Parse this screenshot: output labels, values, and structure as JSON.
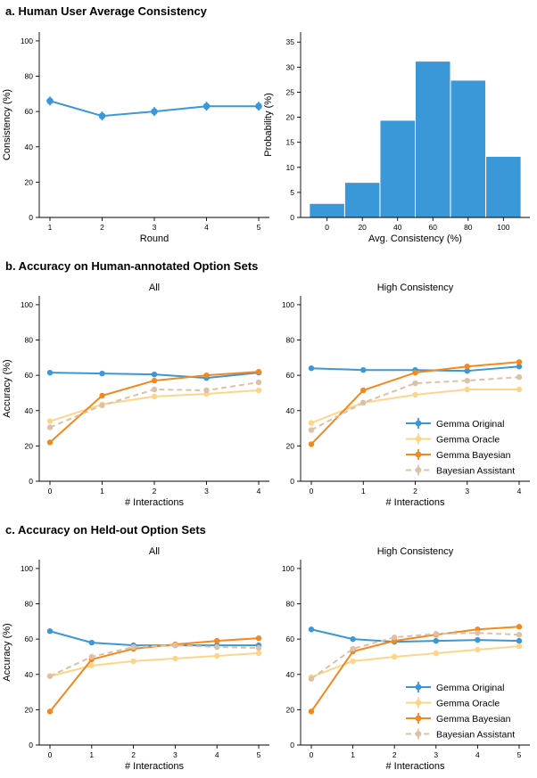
{
  "sections": {
    "a": "a. Human User Average Consistency",
    "b": "b. Accuracy on Human-annotated Option Sets",
    "c": "c. Accuracy on Held-out Option Sets"
  },
  "colors": {
    "gemma_original": "#3a97d8",
    "gemma_oracle": "#fdd58a",
    "gemma_bayesian": "#f5871f",
    "bayesian_assistant": "#dcc1a7",
    "histogram": "#3a97d8"
  },
  "legend": {
    "placement": "lower-right",
    "entries": [
      {
        "name": "Gemma Original",
        "color": "#3a97d8",
        "dashed": false
      },
      {
        "name": "Gemma Oracle",
        "color": "#fdd58a",
        "dashed": false
      },
      {
        "name": "Gemma Bayesian",
        "color": "#f5871f",
        "dashed": false
      },
      {
        "name": "Bayesian Assistant",
        "color": "#dcc1a7",
        "dashed": true
      }
    ]
  },
  "chart_data": [
    {
      "type": "line",
      "title": "",
      "xlabel": "Round",
      "ylabel": "Consistency (%)",
      "x": [
        1,
        2,
        3,
        4,
        5
      ],
      "xticks": [
        1,
        2,
        3,
        4,
        5
      ],
      "ylim": [
        0,
        105
      ],
      "yticks": [
        0,
        20,
        40,
        60,
        80,
        100
      ],
      "series": [
        {
          "color": "#3a97d8",
          "values": [
            66,
            57.5,
            60,
            63,
            63
          ],
          "error": [
            2.5,
            2.5,
            2.5,
            2.5,
            2.5
          ]
        }
      ]
    },
    {
      "type": "bar",
      "title": "",
      "xlabel": "Avg. Consistency (%)",
      "ylabel": "Probability (%)",
      "xlim": [
        -15,
        115
      ],
      "xticks": [
        0,
        20,
        40,
        60,
        80,
        100
      ],
      "ylim": [
        0,
        37
      ],
      "yticks": [
        0,
        5,
        10,
        15,
        20,
        25,
        30,
        35
      ],
      "bins": [
        [
          -10,
          10
        ],
        [
          10,
          30
        ],
        [
          30,
          50
        ],
        [
          50,
          70
        ],
        [
          70,
          90
        ],
        [
          90,
          110
        ]
      ],
      "values": [
        2.8,
        7,
        19.4,
        31.2,
        27.4,
        12.2
      ]
    },
    {
      "type": "line",
      "title": "All",
      "xlabel": "# Interactions",
      "ylabel": "Accuracy (%)",
      "x": [
        0,
        1,
        2,
        3,
        4
      ],
      "xticks": [
        0,
        1,
        2,
        3,
        4
      ],
      "ylim": [
        0,
        105
      ],
      "yticks": [
        0,
        20,
        40,
        60,
        80,
        100
      ],
      "series": [
        {
          "key": "gemma_original",
          "values": [
            61.5,
            61,
            60.5,
            58.5,
            61.5
          ]
        },
        {
          "key": "gemma_oracle",
          "values": [
            34,
            43.5,
            48,
            49.5,
            51.5
          ]
        },
        {
          "key": "gemma_bayesian",
          "values": [
            22,
            48.5,
            57,
            60,
            62
          ]
        },
        {
          "key": "bayesian_assistant",
          "values": [
            30.5,
            43,
            52,
            51.5,
            56
          ]
        }
      ]
    },
    {
      "type": "line",
      "title": "High Consistency",
      "xlabel": "# Interactions",
      "ylabel": "",
      "x": [
        0,
        1,
        2,
        3,
        4
      ],
      "xticks": [
        0,
        1,
        2,
        3,
        4
      ],
      "ylim": [
        0,
        105
      ],
      "yticks": [
        0,
        20,
        40,
        60,
        80,
        100
      ],
      "series": [
        {
          "key": "gemma_original",
          "values": [
            64,
            63,
            63,
            62.5,
            65
          ]
        },
        {
          "key": "gemma_oracle",
          "values": [
            33,
            44.5,
            49,
            52,
            52
          ]
        },
        {
          "key": "gemma_bayesian",
          "values": [
            21,
            51.5,
            61.5,
            65,
            67.5
          ]
        },
        {
          "key": "bayesian_assistant",
          "values": [
            29,
            44.5,
            55.5,
            57,
            59
          ]
        }
      ]
    },
    {
      "type": "line",
      "title": "All",
      "xlabel": "# Interactions",
      "ylabel": "Accuracy (%)",
      "x": [
        0,
        1,
        2,
        3,
        4,
        5
      ],
      "xticks": [
        0,
        1,
        2,
        3,
        4,
        5
      ],
      "ylim": [
        0,
        105
      ],
      "yticks": [
        0,
        20,
        40,
        60,
        80,
        100
      ],
      "series": [
        {
          "key": "gemma_original",
          "values": [
            64.5,
            58,
            56.5,
            56.5,
            56.5,
            56.5
          ]
        },
        {
          "key": "gemma_oracle",
          "values": [
            39,
            45,
            47.5,
            49,
            50.5,
            52
          ]
        },
        {
          "key": "gemma_bayesian",
          "values": [
            19,
            48.5,
            54.5,
            57,
            59,
            60.5
          ]
        },
        {
          "key": "bayesian_assistant",
          "values": [
            39,
            50,
            55.5,
            56.5,
            55.5,
            55
          ]
        }
      ]
    },
    {
      "type": "line",
      "title": "High Consistency",
      "xlabel": "# Interactions",
      "ylabel": "",
      "x": [
        0,
        1,
        2,
        3,
        4,
        5
      ],
      "xticks": [
        0,
        1,
        2,
        3,
        4,
        5
      ],
      "ylim": [
        0,
        105
      ],
      "yticks": [
        0,
        20,
        40,
        60,
        80,
        100
      ],
      "series": [
        {
          "key": "gemma_original",
          "values": [
            65.5,
            60,
            58.5,
            59,
            59.5,
            59
          ]
        },
        {
          "key": "gemma_oracle",
          "values": [
            38.5,
            47.5,
            50,
            52,
            54,
            56
          ]
        },
        {
          "key": "gemma_bayesian",
          "values": [
            19,
            53,
            59,
            62.5,
            65.5,
            67
          ]
        },
        {
          "key": "bayesian_assistant",
          "values": [
            37.5,
            54.5,
            61,
            63,
            63.5,
            62.5
          ]
        }
      ]
    }
  ]
}
